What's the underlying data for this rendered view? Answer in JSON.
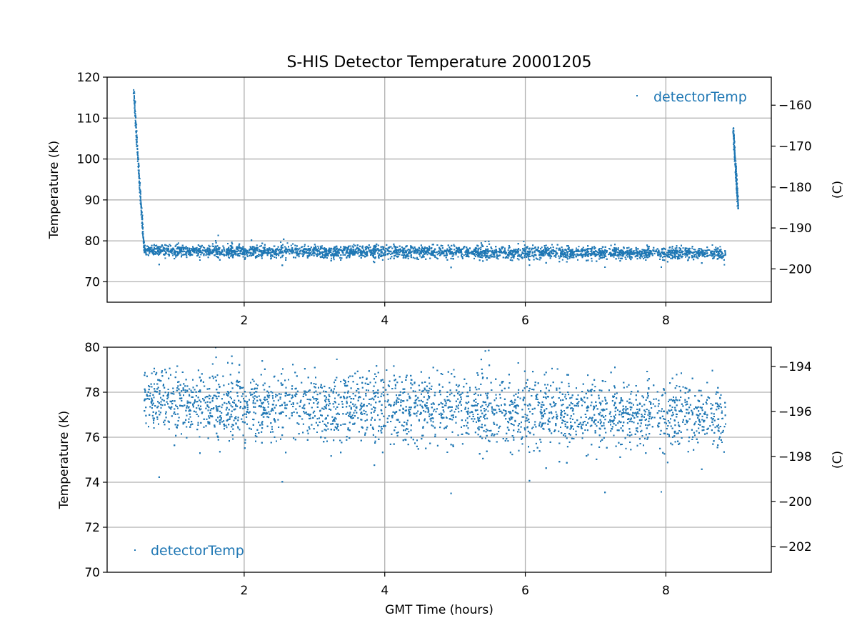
{
  "title": "S-HIS Detector Temperature 20001205",
  "colors": {
    "series": "#1f77b4",
    "grid": "#b0b0b0",
    "axes": "#000000"
  },
  "chart_data": [
    {
      "type": "scatter",
      "title": "S-HIS Detector Temperature 20001205",
      "xlabel": "",
      "ylabel": "Temperature (K)",
      "ylabel_right": "(C)",
      "xlim": [
        0.05,
        9.5
      ],
      "ylim": [
        65,
        120
      ],
      "xticks": [
        2,
        4,
        6,
        8
      ],
      "xtick_labels": [
        "2",
        "4",
        "6",
        "8"
      ],
      "yticks": [
        70,
        80,
        90,
        100,
        110,
        120
      ],
      "ytick_labels": [
        "70",
        "80",
        "90",
        "100",
        "110",
        "120"
      ],
      "right_yticks": [
        -160,
        -170,
        -180,
        -190,
        -200
      ],
      "right_ytick_labels": [
        "−160",
        "−170",
        "−180",
        "−190",
        "−200"
      ],
      "celsius_offset": 273.15,
      "grid": true,
      "legend": {
        "label": "detectorTemp",
        "placement": "top-right"
      },
      "series": [
        {
          "name": "detectorTemp",
          "segments": [
            {
              "kind": "cooldown",
              "x_start": 0.43,
              "x_end": 0.58,
              "y_start": 117,
              "y_end": 77.5
            },
            {
              "kind": "plateau",
              "x_start": 0.58,
              "x_end": 8.85,
              "y_mean_start": 77.6,
              "y_mean_end": 76.9,
              "y_range": [
                73.5,
                82.5
              ]
            },
            {
              "kind": "warmup",
              "x_start": 8.96,
              "x_end": 9.03,
              "y_start": 107.5,
              "y_end": 88
            }
          ]
        }
      ]
    },
    {
      "type": "scatter",
      "title": "",
      "xlabel": "GMT Time (hours)",
      "ylabel": "Temperature (K)",
      "ylabel_right": "(C)",
      "xlim": [
        0.05,
        9.5
      ],
      "ylim": [
        70,
        80
      ],
      "xticks": [
        2,
        4,
        6,
        8
      ],
      "xtick_labels": [
        "2",
        "4",
        "6",
        "8"
      ],
      "yticks": [
        70,
        72,
        74,
        76,
        78,
        80
      ],
      "ytick_labels": [
        "70",
        "72",
        "74",
        "76",
        "78",
        "80"
      ],
      "right_yticks": [
        -194,
        -196,
        -198,
        -200,
        -202
      ],
      "right_ytick_labels": [
        "−194",
        "−196",
        "−198",
        "−200",
        "−202"
      ],
      "celsius_offset": 273.15,
      "grid": true,
      "legend": {
        "label": "detectorTemp",
        "placement": "bottom-left"
      },
      "series": [
        {
          "name": "detectorTemp",
          "segments": [
            {
              "kind": "plateau",
              "x_start": 0.58,
              "x_end": 8.85,
              "y_mean_start": 77.6,
              "y_mean_end": 76.9,
              "y_range": [
                73.5,
                82.5
              ]
            }
          ]
        }
      ]
    }
  ]
}
